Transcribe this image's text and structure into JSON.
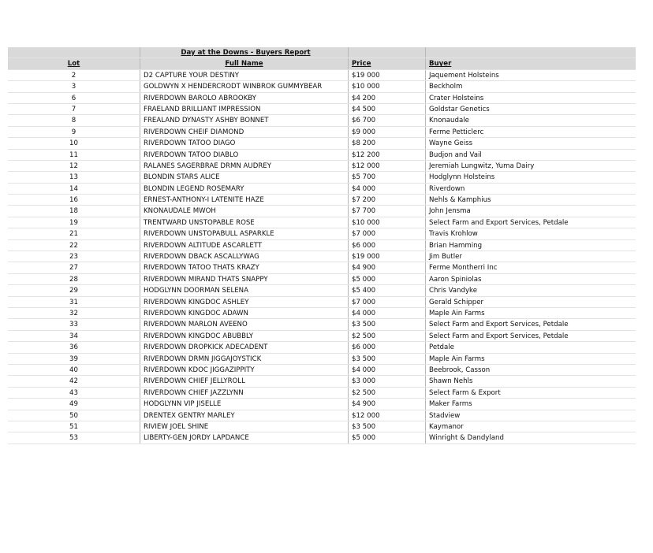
{
  "header": {
    "title": "Day at the Downs - Buyers Report"
  },
  "table": {
    "columns": [
      "Lot",
      "Full Name",
      "Price",
      "Buyer"
    ],
    "rows": [
      [
        "2",
        "D2 CAPTURE YOUR DESTINY",
        "$19 000",
        "Jaquement Holsteins"
      ],
      [
        "3",
        "GOLDWYN X HENDERCRODT WINBROK GUMMYBEAR",
        "$10 000",
        "Beckholm"
      ],
      [
        "6",
        "RIVERDOWN BAROLO ABROOKBY",
        "$4 200",
        "Crater Holsteins"
      ],
      [
        "7",
        "FRAELAND BRILLIANT IMPRESSION",
        "$4 500",
        "Goldstar Genetics"
      ],
      [
        "8",
        "FREALAND DYNASTY ASHBY BONNET",
        "$6 700",
        "Knonaudale"
      ],
      [
        "9",
        "RIVERDOWN CHEIF DIAMOND",
        "$9 000",
        "Ferme Petticlerc"
      ],
      [
        "10",
        "RIVERDOWN TATOO DIAGO",
        "$8 200",
        "Wayne Geiss"
      ],
      [
        "11",
        "RIVERDOWN TATOO DIABLO",
        "$12 200",
        "Budjon and Vail"
      ],
      [
        "12",
        "RALANES SAGERBRAE DRMN AUDREY",
        "$12 000",
        "Jeremiah Lungwitz, Yuma Dairy"
      ],
      [
        "13",
        "BLONDIN STARS ALICE",
        "$5 700",
        "Hodglynn Holsteins"
      ],
      [
        "14",
        "BLONDIN LEGEND ROSEMARY",
        "$4 000",
        "Riverdown"
      ],
      [
        "16",
        "ERNEST-ANTHONY-I LATENITE HAZE",
        "$7 200",
        "Nehls & Kamphius"
      ],
      [
        "18",
        "KNONAUDALE MWOH",
        "$7 700",
        "John Jensma"
      ],
      [
        "19",
        "TRENTWARD UNSTOPABLE ROSE",
        "$10 000",
        "Select Farm and Export Services, Petdale"
      ],
      [
        "21",
        "RIVERDOWN UNSTOPABULL ASPARKLE",
        "$7 000",
        "Travis Krohlow"
      ],
      [
        "22",
        "RIVERDOWN ALTITUDE ASCARLETT",
        "$6 000",
        "Brian Hamming"
      ],
      [
        "23",
        "RIVERDOWN DBACK ASCALLYWAG",
        "$19 000",
        "Jim Butler"
      ],
      [
        "27",
        "RIVERDOWN TATOO THATS KRAZY",
        "$4 900",
        "Ferme Montherri Inc"
      ],
      [
        "28",
        "RIVERDOWN MIRAND THATS SNAPPY",
        "$5 000",
        "Aaron Spiniolas"
      ],
      [
        "29",
        "HODGLYNN DOORMAN SELENA",
        "$5 400",
        "Chris Vandyke"
      ],
      [
        "31",
        "RIVERDOWN KINGDOC ASHLEY",
        "$7 000",
        "Gerald Schipper"
      ],
      [
        "32",
        "RIVERDOWN KINGDOC ADAWN",
        "$4 000",
        "Maple Ain Farms"
      ],
      [
        "33",
        "RIVERDOWN MARLON AVEENO",
        "$3 500",
        "Select Farm and Export Services, Petdale"
      ],
      [
        "34",
        "RIVERDOWN KINGDOC ABUBBLY",
        "$2 500",
        "Select Farm and Export Services, Petdale"
      ],
      [
        "36",
        "RIVERDOWN DROPKICK ADECADENT",
        "$6 000",
        "Petdale"
      ],
      [
        "39",
        "RIVERDOWN DRMN JIGGAJOYSTICK",
        "$3 500",
        "Maple Ain Farms"
      ],
      [
        "40",
        "RIVERDOWN KDOC JIGGAZIPPITY",
        "$4 000",
        "Beebrook, Casson"
      ],
      [
        "42",
        "RIVERDOWN CHIEF JELLYROLL",
        "$3 000",
        "Shawn Nehls"
      ],
      [
        "43",
        "RIVERDOWN CHIEF JAZZLYNN",
        "$2 500",
        "Select Farm & Export"
      ],
      [
        "49",
        "HODGLYNN VIP JISELLE",
        "$4 900",
        "Maker Farms"
      ],
      [
        "50",
        "DRENTEX GENTRY MARLEY",
        "$12 000",
        "Stadview"
      ],
      [
        "51",
        "RIVIEW JOEL SHINE",
        "$3 500",
        "Kaymanor"
      ],
      [
        "53",
        "LIBERTY-GEN JORDY LAPDANCE",
        "$5 000",
        "Winright & Dandyland"
      ]
    ]
  }
}
